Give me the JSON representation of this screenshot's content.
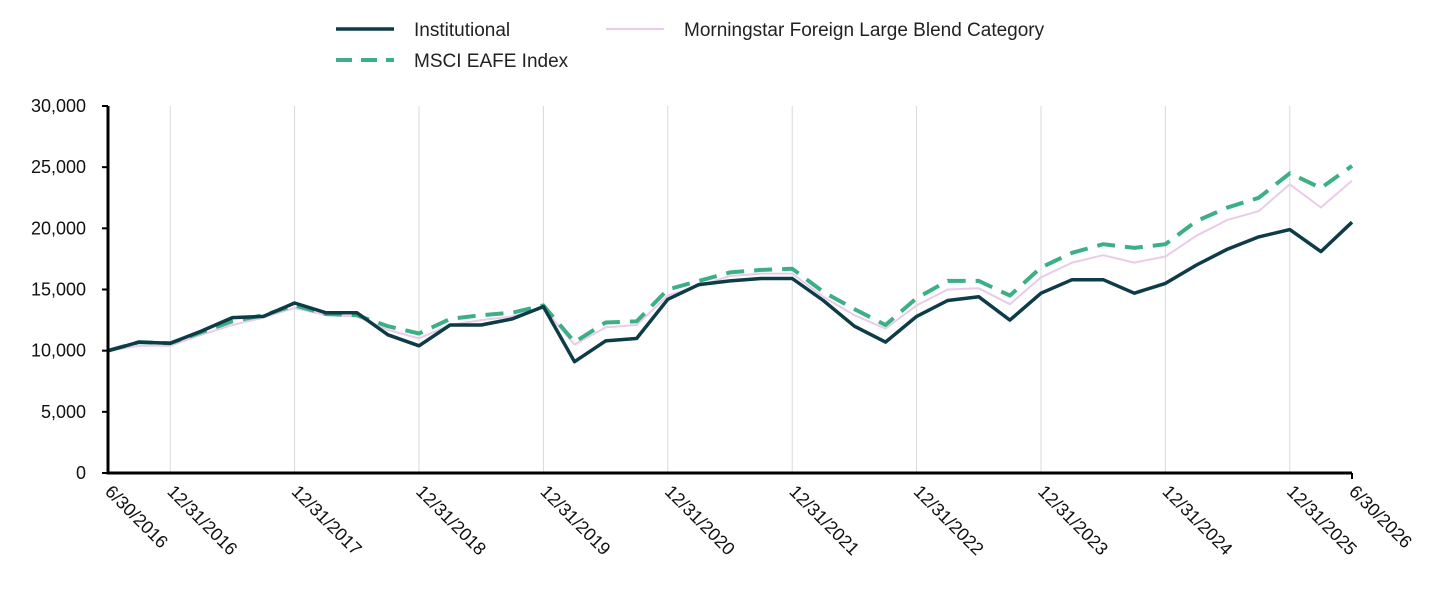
{
  "chart_data": {
    "type": "line",
    "title": "",
    "xlabel": "",
    "ylabel": "",
    "ylim": [
      0,
      30000
    ],
    "yticks": [
      "0",
      "5,000",
      "10,000",
      "15,000",
      "20,000",
      "25,000",
      "30,000"
    ],
    "yticks_values": [
      0,
      5000,
      10000,
      15000,
      20000,
      25000,
      30000
    ],
    "xticks": [
      "6/30/2016",
      "12/31/2016",
      "12/31/2017",
      "12/31/2018",
      "12/31/2019",
      "12/31/2020",
      "12/31/2021",
      "12/31/2022",
      "12/31/2023",
      "12/31/2024",
      "12/31/2025",
      "6/30/2026"
    ],
    "grid": "vertical",
    "legend_position": "top",
    "x": [
      "6/30/2016",
      "9/30/2016",
      "12/31/2016",
      "3/31/2017",
      "6/30/2017",
      "9/30/2017",
      "12/31/2017",
      "3/31/2018",
      "6/30/2018",
      "9/30/2018",
      "12/31/2018",
      "3/31/2019",
      "6/30/2019",
      "9/30/2019",
      "12/31/2019",
      "3/31/2020",
      "6/30/2020",
      "9/30/2020",
      "12/31/2020",
      "3/31/2021",
      "6/30/2021",
      "9/30/2021",
      "12/31/2021",
      "3/31/2022",
      "6/30/2022",
      "9/30/2022",
      "12/31/2022",
      "3/31/2023",
      "6/30/2023",
      "9/30/2023",
      "12/31/2023",
      "3/31/2024",
      "6/30/2024",
      "9/30/2024",
      "12/31/2024",
      "3/31/2025",
      "6/30/2025",
      "9/30/2025",
      "12/31/2025",
      "3/31/2026",
      "6/30/2026"
    ],
    "series": [
      {
        "name": "Institutional",
        "color": "#0d3b47",
        "style": "solid",
        "values": [
          10000,
          10700,
          10600,
          11600,
          12700,
          12800,
          13900,
          13100,
          13100,
          11300,
          10400,
          12100,
          12100,
          12600,
          13600,
          9100,
          10800,
          11000,
          14200,
          15400,
          15700,
          15900,
          15900,
          14100,
          12000,
          10700,
          12800,
          14100,
          14400,
          12500,
          14700,
          15800,
          15800,
          14700,
          15500,
          17000,
          18300,
          19300,
          19900,
          18100,
          20500
        ]
      },
      {
        "name": "MSCI EAFE Index",
        "color": "#3caf87",
        "style": "dashed",
        "values": [
          10000,
          10700,
          10600,
          11500,
          12400,
          12900,
          13700,
          13000,
          12900,
          12000,
          11400,
          12600,
          12900,
          13100,
          13700,
          10700,
          12300,
          12400,
          15000,
          15700,
          16400,
          16600,
          16700,
          14800,
          13400,
          12100,
          14300,
          15700,
          15700,
          14500,
          16800,
          18000,
          18700,
          18400,
          18700,
          20600,
          21700,
          22500,
          24500,
          23300,
          25100
        ]
      },
      {
        "name": "Morningstar Foreign Large Blend Category",
        "color": "#e8cce8",
        "style": "solid-thin",
        "values": [
          10000,
          10400,
          10400,
          11300,
          12100,
          12700,
          13500,
          12900,
          12800,
          11700,
          11000,
          12100,
          12500,
          12800,
          13500,
          10500,
          11900,
          12100,
          14500,
          15300,
          16100,
          16300,
          16300,
          14400,
          12900,
          11800,
          13700,
          15000,
          15100,
          13800,
          16000,
          17200,
          17800,
          17200,
          17700,
          19400,
          20700,
          21400,
          23600,
          21700,
          23900
        ]
      }
    ]
  }
}
